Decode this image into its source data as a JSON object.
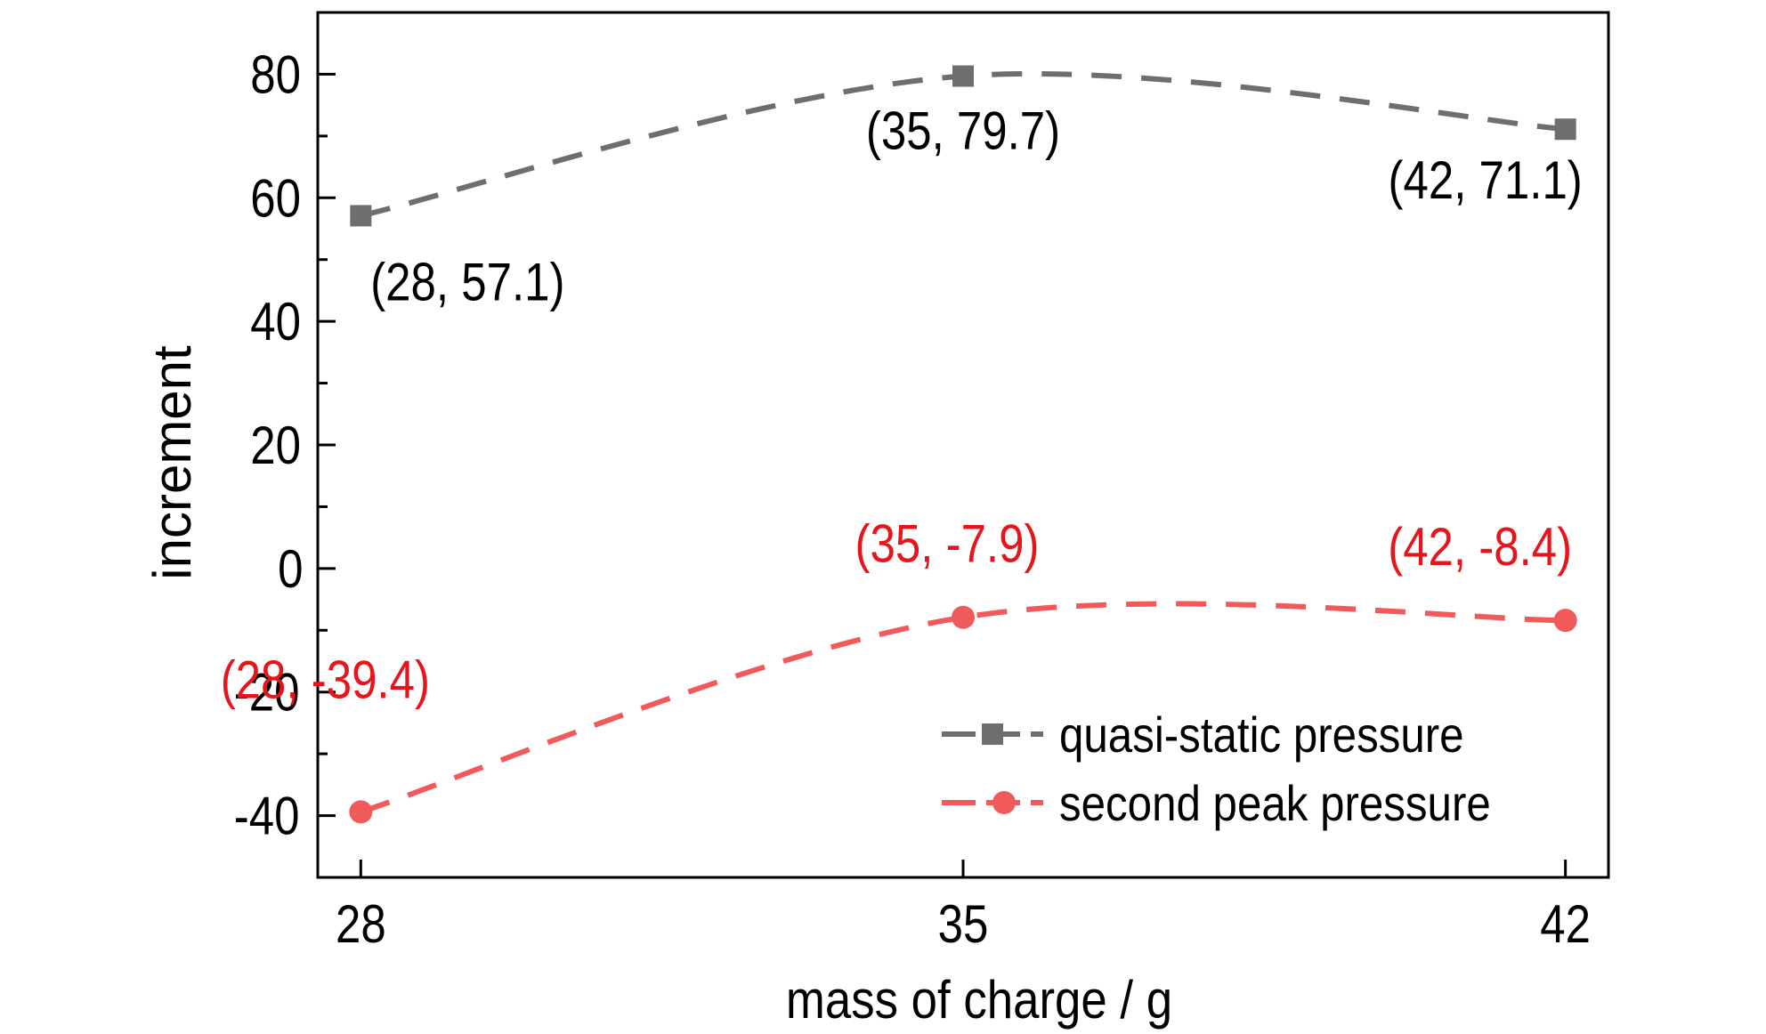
{
  "chart_data": {
    "type": "line",
    "xlabel": "mass of charge / g",
    "ylabel": "increment",
    "x": [
      28,
      35,
      42
    ],
    "xlim": [
      27.5,
      42.5
    ],
    "ylim": [
      -50,
      90
    ],
    "xticks": [
      28,
      35,
      42
    ],
    "yticks": [
      -40,
      -20,
      0,
      20,
      40,
      60,
      80
    ],
    "ytick_labels": [
      "-40",
      "-20",
      "0",
      "20",
      "40",
      "60",
      "80"
    ],
    "grid": false,
    "legend_position": "lower-right",
    "series": [
      {
        "name": "quasi-static pressure",
        "values": [
          57.1,
          79.7,
          71.1
        ],
        "color": "#6e6e6e",
        "marker": "square",
        "line_style": "dashed",
        "point_labels": [
          "(28, 57.1)",
          "(35, 79.7)",
          "(42, 71.1)"
        ],
        "label_color": "#000000"
      },
      {
        "name": "second peak pressure",
        "values": [
          -39.4,
          -7.9,
          -8.4
        ],
        "color": "#f05a5a",
        "marker": "circle",
        "line_style": "dashed",
        "point_labels": [
          "(28, -39.4)",
          "(35, -7.9)",
          "(42, -8.4)"
        ],
        "label_color": "#e8141c"
      }
    ]
  }
}
